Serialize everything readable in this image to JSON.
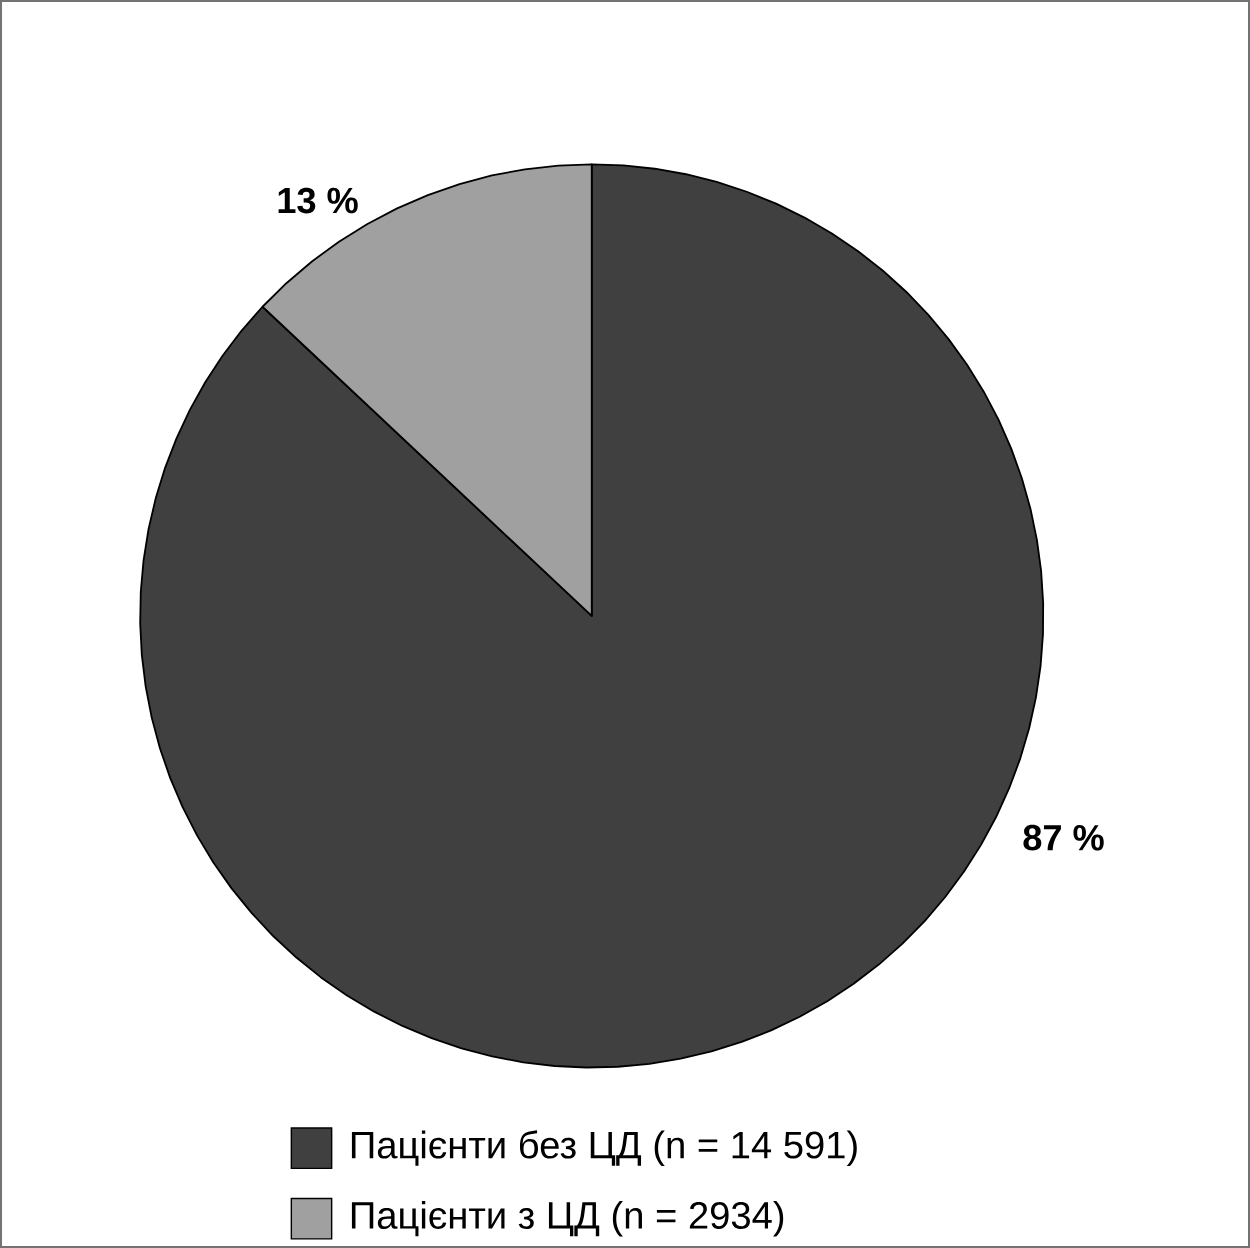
{
  "chart_data": {
    "type": "pie",
    "categories": [
      "Пацієнти без ЦД (n = 14 591)",
      "Пацієнти з ЦД (n = 2934)"
    ],
    "values": [
      87,
      13
    ],
    "colors": [
      "#404040",
      "#a0a0a0"
    ],
    "value_labels": [
      "87 %",
      "13 %"
    ],
    "legend": "bottom"
  }
}
